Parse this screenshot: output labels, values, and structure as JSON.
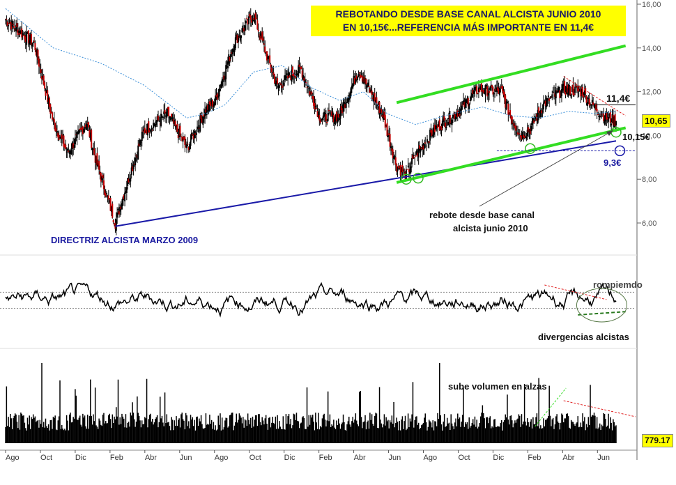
{
  "headline": {
    "line1": "REBOTANDO DESDE BASE CANAL ALCISTA JUNIO 2010",
    "line2": "EN 10,15€...REFERENCIA MÁS IMPORTANTE EN 11,4€"
  },
  "annotations": {
    "directriz": "DIRECTRIZ ALCISTA MARZO 2009",
    "rebote_1": "rebote desde base canal",
    "rebote_2": "alcista junio 2010",
    "level_114": "11,4€",
    "level_1015": "10,15€",
    "level_93": "9,3€",
    "rompiendo": "rompiemdo",
    "divergencias": "divergencias alcistas",
    "volumen": "sube volumen en alzas"
  },
  "price_box": "10,65",
  "volume_box": "779.17",
  "chart_data": [
    {
      "type": "candlestick",
      "title": "REBOTANDO DESDE BASE CANAL ALCISTA JUNIO 2010 EN 10,15€...REFERENCIA MÁS IMPORTANTE EN 11,4€",
      "y_ticks": [
        "6,00",
        "8,00",
        "10,00",
        "12,00",
        "14,00",
        "16,00"
      ],
      "ylim": [
        5.5,
        16.2
      ],
      "x_ticks": [
        "Ago",
        "Oct",
        "Dic",
        "Feb",
        "Abr",
        "Jun",
        "Ago",
        "Oct",
        "Dic",
        "Feb",
        "Abr",
        "Jun",
        "Ago",
        "Oct",
        "Dic",
        "Feb",
        "Abr",
        "Jun"
      ],
      "close_path": [
        [
          0,
          15.3
        ],
        [
          6,
          14.2
        ],
        [
          10,
          10.6
        ],
        [
          13,
          9.2
        ],
        [
          17,
          10.6
        ],
        [
          19,
          8.8
        ],
        [
          23,
          6.0
        ],
        [
          26,
          8.2
        ],
        [
          29,
          10.2
        ],
        [
          34,
          11.0
        ],
        [
          38,
          9.4
        ],
        [
          42,
          11.2
        ],
        [
          44,
          11.6
        ],
        [
          48,
          14.3
        ],
        [
          52,
          15.5
        ],
        [
          55,
          13.5
        ],
        [
          57,
          12.2
        ],
        [
          60,
          12.8
        ],
        [
          62,
          13.0
        ],
        [
          66,
          10.8
        ],
        [
          70,
          10.9
        ],
        [
          74,
          13.0
        ],
        [
          79,
          11.0
        ],
        [
          82,
          8.6
        ],
        [
          84,
          8.2
        ],
        [
          86,
          9.1
        ],
        [
          90,
          10.3
        ],
        [
          92,
          10.6
        ],
        [
          95,
          11.1
        ],
        [
          99,
          12.1
        ],
        [
          104,
          12.0
        ],
        [
          106,
          10.8
        ],
        [
          108,
          10.0
        ],
        [
          110,
          10.3
        ],
        [
          113,
          11.5
        ],
        [
          117,
          12.1
        ],
        [
          121,
          12.0
        ],
        [
          123,
          11.4
        ],
        [
          126,
          10.8
        ],
        [
          128,
          10.65
        ]
      ],
      "moving_average": [
        [
          0,
          15.8
        ],
        [
          10,
          14.0
        ],
        [
          20,
          13.3
        ],
        [
          29,
          12.3
        ],
        [
          38,
          10.8
        ],
        [
          42,
          11.0
        ],
        [
          46,
          11.4
        ],
        [
          52,
          12.9
        ],
        [
          58,
          13.2
        ],
        [
          64,
          12.2
        ],
        [
          70,
          11.6
        ],
        [
          75,
          12.0
        ],
        [
          80,
          11.0
        ],
        [
          86,
          10.5
        ],
        [
          92,
          10.9
        ],
        [
          100,
          11.3
        ],
        [
          106,
          10.9
        ],
        [
          112,
          10.8
        ],
        [
          118,
          11.1
        ],
        [
          124,
          11.0
        ],
        [
          128,
          11.1
        ]
      ],
      "trendlines": [
        {
          "name": "DIRECTRIZ ALCISTA MARZO 2009",
          "from": [
            23,
            5.85
          ],
          "to": [
            128,
            9.75
          ]
        },
        {
          "name": "canal alcista base",
          "from": [
            82,
            7.85
          ],
          "to": [
            130,
            10.35
          ]
        },
        {
          "name": "canal alcista techo",
          "from": [
            82,
            11.5
          ],
          "to": [
            130,
            14.1
          ]
        }
      ],
      "levels": [
        {
          "label": "11,4€",
          "value": 11.4
        },
        {
          "label": "10,15€",
          "value": 10.15
        },
        {
          "label": "9,3€",
          "value": 9.3
        }
      ],
      "last_price": 10.65
    },
    {
      "type": "line",
      "title": "",
      "ylim": [
        0,
        100
      ],
      "upper_band": 70,
      "lower_band": 30,
      "annotations": [
        "rompiemdo",
        "divergencias alcistas"
      ]
    },
    {
      "type": "bar",
      "title": "",
      "last_value": 779.17,
      "annotations": [
        "sube volumen en alzas"
      ]
    }
  ],
  "colors": {
    "candle_up": "#000000",
    "candle_down": "#c00000",
    "trend_blue": "#1a1aa8",
    "trend_green": "#33dd22",
    "ma_blue": "#3b8fd8",
    "highlight": "#ffff00"
  }
}
